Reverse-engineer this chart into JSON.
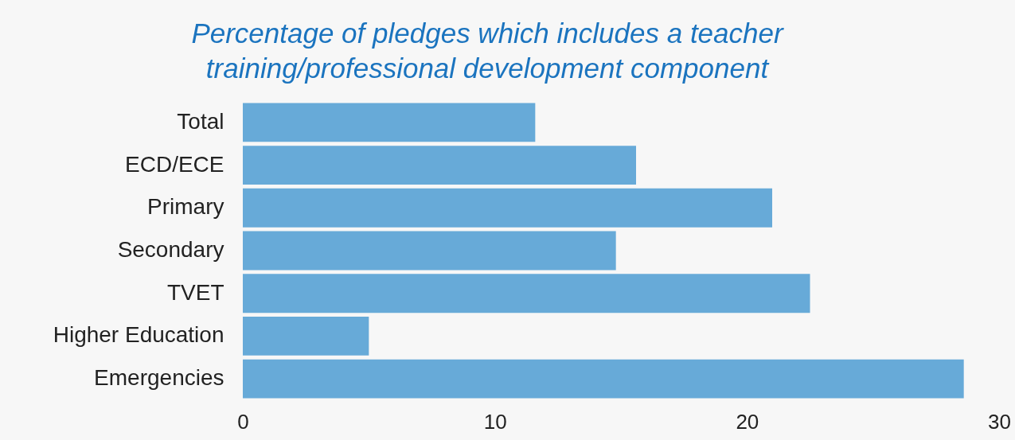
{
  "chart_data": {
    "type": "bar",
    "orientation": "horizontal",
    "title": "Percentage of pledges which includes a teacher\ntraining/professional development component",
    "categories": [
      "Total",
      "ECD/ECE",
      "Primary",
      "Secondary",
      "TVET",
      "Higher Education",
      "Emergencies"
    ],
    "values": [
      11.6,
      15.6,
      21.0,
      14.8,
      22.5,
      5.0,
      28.6
    ],
    "color": "#67aad8",
    "xlim": [
      0,
      30
    ],
    "xticks": [
      0,
      10,
      20,
      30
    ],
    "grid": false
  }
}
